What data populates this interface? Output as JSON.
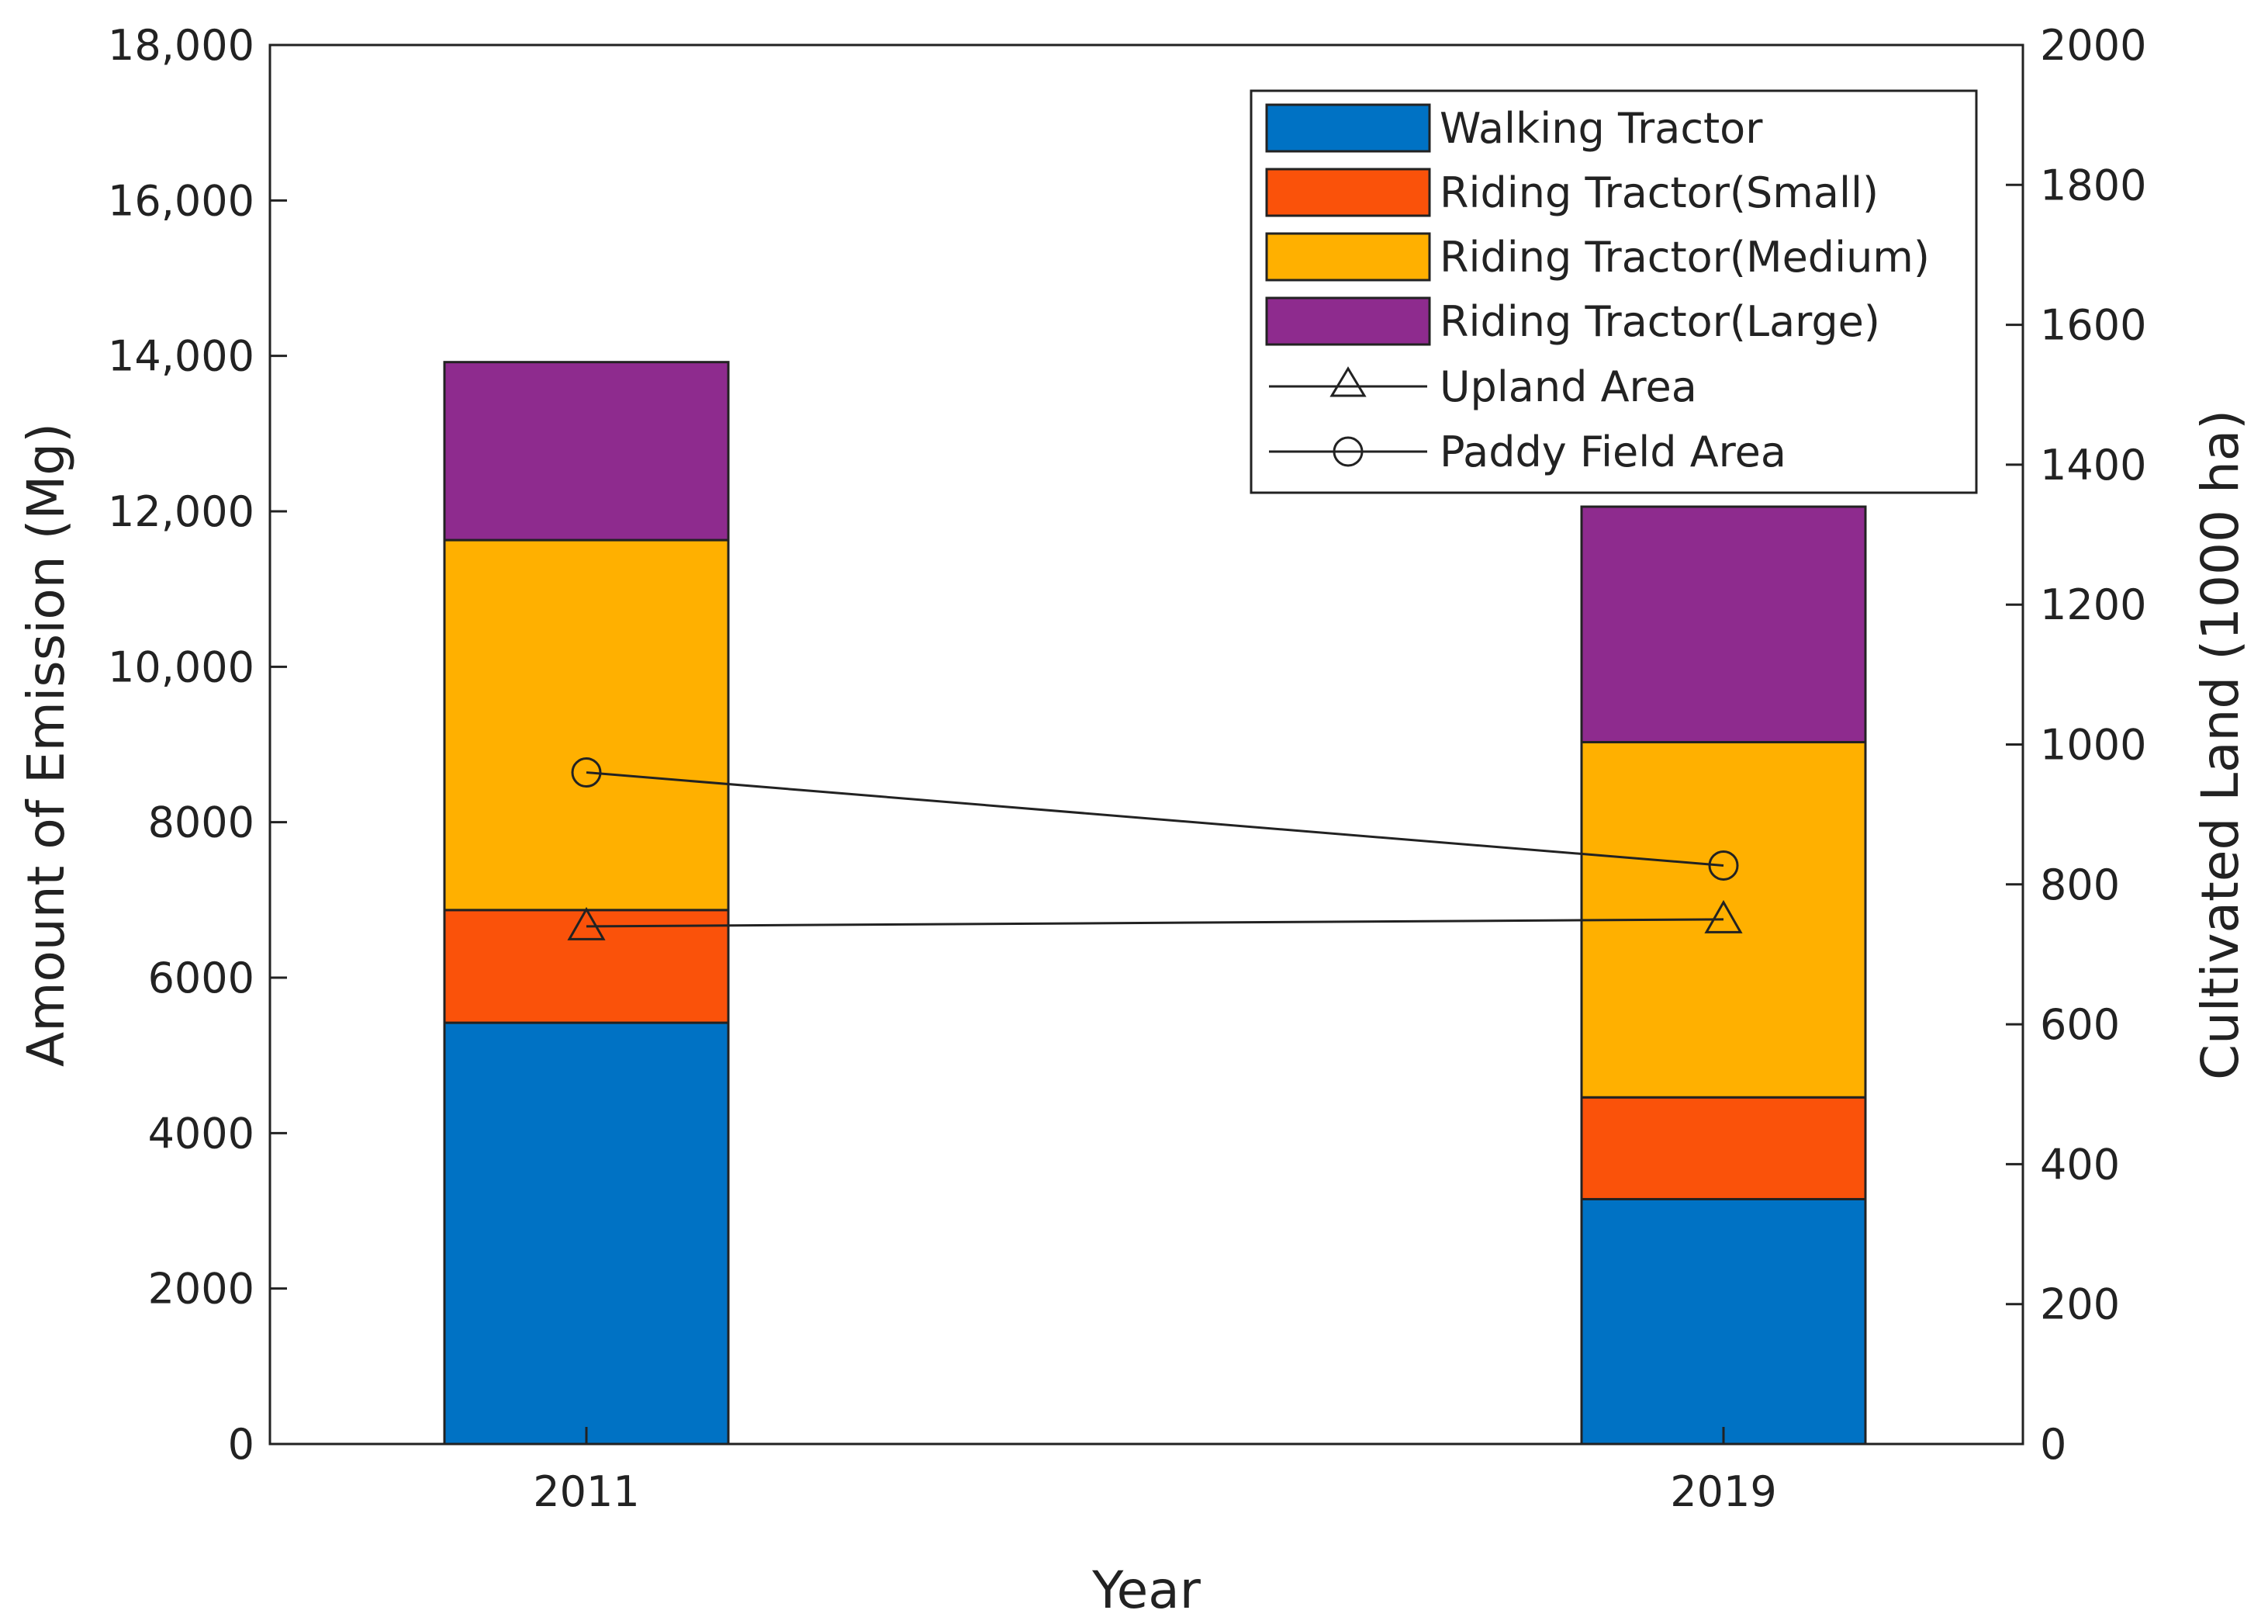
{
  "chart_data": {
    "type": "bar",
    "stacked": true,
    "categories": [
      "2011",
      "2019"
    ],
    "xlabel": "Year",
    "ylabel": "Amount of Emission (Mg)",
    "y2label": "Cultivated Land (1000 ha)",
    "ylim": [
      0,
      18000
    ],
    "y2lim": [
      0,
      2000
    ],
    "yticks": [
      "0",
      "2000",
      "4000",
      "6000",
      "8000",
      "10,000",
      "12,000",
      "14,000",
      "16,000",
      "18,000"
    ],
    "y2ticks": [
      "0",
      "200",
      "400",
      "600",
      "800",
      "1000",
      "1200",
      "1400",
      "1600",
      "1800",
      "2000"
    ],
    "legend_position": "top-right",
    "series": [
      {
        "name": "Walking Tractor",
        "color": "#0072C4",
        "values": [
          5420,
          3150
        ]
      },
      {
        "name": "Riding Tractor(Small)",
        "color": "#FA520A",
        "values": [
          1450,
          1310
        ]
      },
      {
        "name": "Riding Tractor(Medium)",
        "color": "#FFB000",
        "values": [
          4760,
          4570
        ]
      },
      {
        "name": "Riding Tractor(Large)",
        "color": "#8E2B8E",
        "values": [
          2290,
          3030
        ]
      }
    ],
    "lines": [
      {
        "name": "Upland Area",
        "marker": "triangle",
        "axis": "right",
        "values": [
          740,
          750
        ]
      },
      {
        "name": "Paddy Field Area",
        "marker": "circle",
        "axis": "right",
        "values": [
          960,
          827
        ]
      }
    ]
  }
}
